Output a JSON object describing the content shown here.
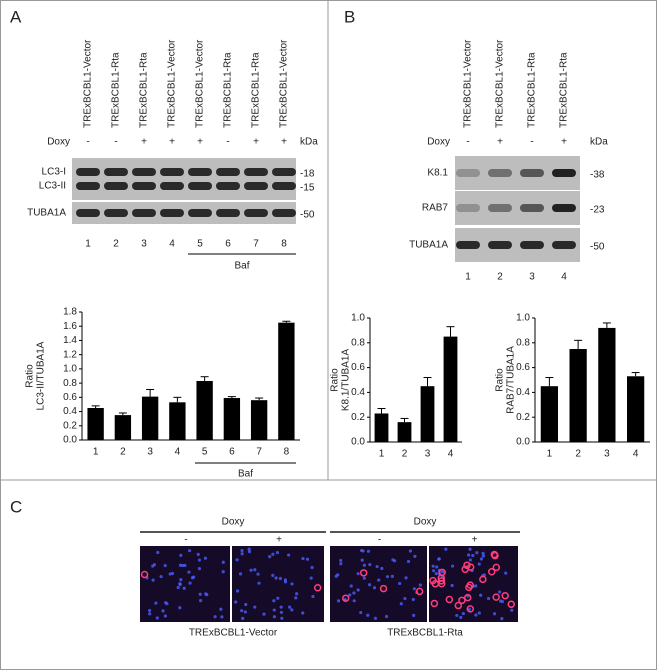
{
  "panels": {
    "A": {
      "label": "A",
      "lanes": [
        "TRExBCBL1-Vector",
        "TRExBCBL1-Rta",
        "TRExBCBL1-Rta",
        "TRExBCBL1-Vector",
        "TRExBCBL1-Vector",
        "TRExBCBL1-Rta",
        "TRExBCBL1-Rta",
        "TRExBCBL1-Vector"
      ],
      "doxy_label": "Doxy",
      "doxy": [
        "-",
        "-",
        "+",
        "+",
        "+",
        "-",
        "+",
        "+"
      ],
      "kda": "kDa",
      "blots": [
        {
          "names": [
            "LC3-I",
            "LC3-II"
          ],
          "markers": [
            "-18",
            "-15"
          ]
        },
        {
          "names": [
            "TUBA1A"
          ],
          "markers": [
            "-50"
          ]
        }
      ],
      "lane_numbers": [
        "1",
        "2",
        "3",
        "4",
        "5",
        "6",
        "7",
        "8"
      ],
      "baf": "Baf"
    },
    "B": {
      "label": "B",
      "lanes": [
        "TRExBCBL1-Vector",
        "TRExBCBL1-Vector",
        "TRExBCBL1-Rta",
        "TRExBCBL1-Rta"
      ],
      "doxy_label": "Doxy",
      "doxy": [
        "-",
        "+",
        "-",
        "+"
      ],
      "kda": "kDa",
      "blots": [
        {
          "names": [
            "K8.1"
          ],
          "markers": [
            "-38"
          ]
        },
        {
          "names": [
            "RAB7"
          ],
          "markers": [
            "-23"
          ]
        },
        {
          "names": [
            "TUBA1A"
          ],
          "markers": [
            "-50"
          ]
        }
      ],
      "lane_numbers": [
        "1",
        "2",
        "3",
        "4"
      ]
    },
    "C": {
      "label": "C",
      "groups": [
        {
          "doxy_label": "Doxy",
          "signs": [
            "-",
            "+"
          ],
          "caption": "TRExBCBL1-Vector"
        },
        {
          "doxy_label": "Doxy",
          "signs": [
            "-",
            "+"
          ],
          "caption": "TRExBCBL1-Rta"
        }
      ]
    }
  },
  "chart_data": [
    {
      "type": "bar",
      "ylabel": [
        "Ratio",
        "LC3-II/TUBA1A"
      ],
      "categories": [
        "1",
        "2",
        "3",
        "4",
        "5",
        "6",
        "7",
        "8"
      ],
      "values": [
        0.45,
        0.35,
        0.61,
        0.53,
        0.83,
        0.59,
        0.56,
        1.65
      ],
      "errors": [
        0.03,
        0.03,
        0.1,
        0.07,
        0.06,
        0.02,
        0.03,
        0.02
      ],
      "color": "#000000",
      "ylim": [
        0,
        1.8
      ],
      "yticks": [
        {
          "value": 0,
          "label": "0.0"
        },
        0.2,
        0.4,
        0.6,
        0.8,
        {
          "value": 1,
          "label": "1.0"
        },
        1.2,
        1.4,
        1.6,
        1.8
      ],
      "annotation": "Baf"
    },
    {
      "type": "bar",
      "ylabel": [
        "Ratio",
        "K8.1/TUBA1A"
      ],
      "categories": [
        "1",
        "2",
        "3",
        "4"
      ],
      "values": [
        0.23,
        0.16,
        0.45,
        0.85
      ],
      "errors": [
        0.04,
        0.03,
        0.07,
        0.08
      ],
      "color": "#000000",
      "ylim": [
        0,
        1
      ],
      "yticks": [
        {
          "value": 0,
          "label": "0.0"
        },
        0.2,
        0.4,
        0.6,
        0.8,
        {
          "value": 1,
          "label": "1.0"
        }
      ]
    },
    {
      "type": "bar",
      "ylabel": [
        "Ratio",
        "RAB7/TUBA1A"
      ],
      "categories": [
        "1",
        "2",
        "3",
        "4"
      ],
      "values": [
        0.45,
        0.75,
        0.92,
        0.53
      ],
      "errors": [
        0.07,
        0.07,
        0.04,
        0.03
      ],
      "color": "#000000",
      "ylim": [
        0,
        1
      ],
      "yticks": [
        {
          "value": 0,
          "label": "0.0"
        },
        0.2,
        0.4,
        0.6,
        0.8,
        {
          "value": 1,
          "label": "1.0"
        }
      ]
    }
  ]
}
